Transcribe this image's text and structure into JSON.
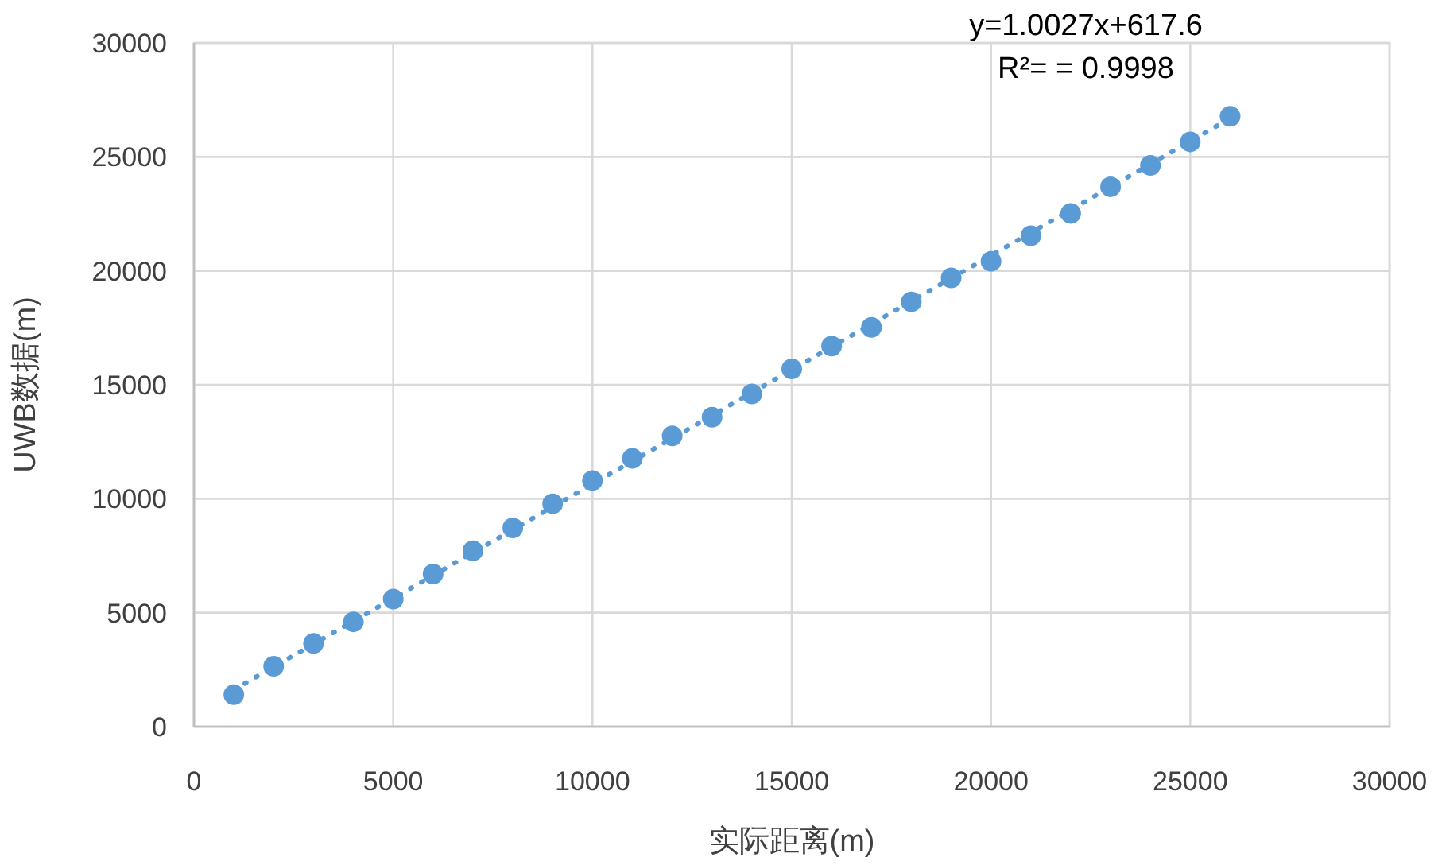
{
  "chart_data": {
    "type": "scatter",
    "xlabel": "实际距离(m)",
    "ylabel": "UWB数据(m)",
    "annotations": [
      "y=1.0027x+617.6",
      "R²= = 0.9998"
    ],
    "xlim": [
      0,
      30000
    ],
    "xticks": [
      0,
      5000,
      10000,
      15000,
      20000,
      25000,
      30000
    ],
    "ylim": [
      0,
      30000
    ],
    "yticks": [
      0,
      5000,
      10000,
      15000,
      20000,
      25000,
      30000
    ],
    "grid": true,
    "marker": "circle",
    "series": [
      {
        "color": "#5b9bd5",
        "x": [
          1000,
          2000,
          3000,
          4000,
          5000,
          6000,
          7000,
          8000,
          9000,
          10000,
          11000,
          12000,
          13000,
          14000,
          15000,
          16000,
          17000,
          18000,
          19000,
          20000,
          21000,
          22000,
          23000,
          24000,
          25000,
          26000
        ],
        "values": [
          1400,
          2650,
          3650,
          4600,
          5600,
          6700,
          7720,
          8720,
          9780,
          10800,
          11770,
          12760,
          13580,
          14600,
          15700,
          16700,
          17520,
          18640,
          19690,
          20420,
          21540,
          22520,
          23690,
          24630,
          25660,
          26780
        ]
      },
      {
        "type": "line",
        "color": "#5b9bd5",
        "line_style": "dotted",
        "marker": "none",
        "x": [
          1000,
          26000
        ],
        "values": [
          1620,
          26690
        ]
      }
    ]
  }
}
